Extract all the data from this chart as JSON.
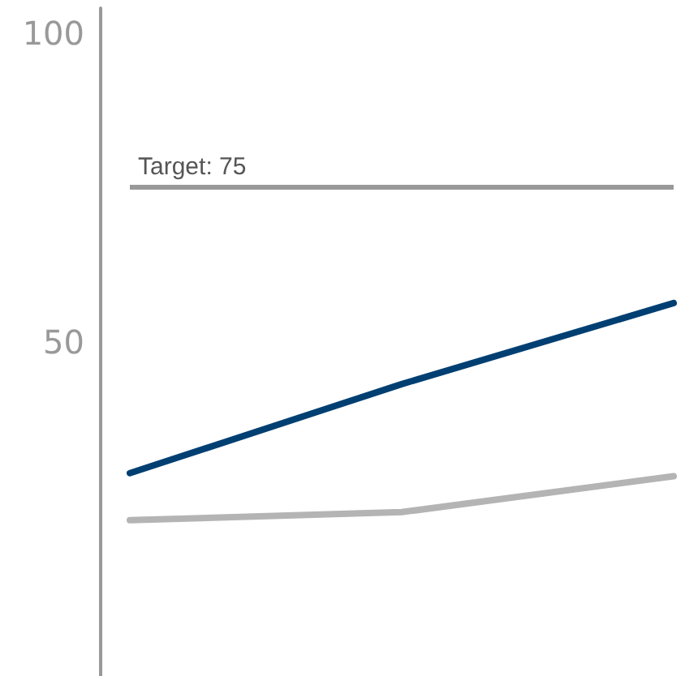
{
  "chart_data": {
    "type": "line",
    "categories": [
      null,
      null,
      null
    ],
    "series": [
      {
        "color": "#003f72",
        "values": [
          28.8,
          43.2,
          56.3
        ]
      },
      {
        "color": "#b4b4b4",
        "values": [
          21.2,
          22.5,
          28.3
        ]
      }
    ],
    "ylim": [
      -4,
      104
    ],
    "yticks": [
      50,
      100
    ],
    "grid": false,
    "marker": "none",
    "line_style": "solid",
    "ref_lines": [
      {
        "axis": "y",
        "value": 75,
        "label": "Target: 75",
        "color": "#999999"
      }
    ]
  }
}
